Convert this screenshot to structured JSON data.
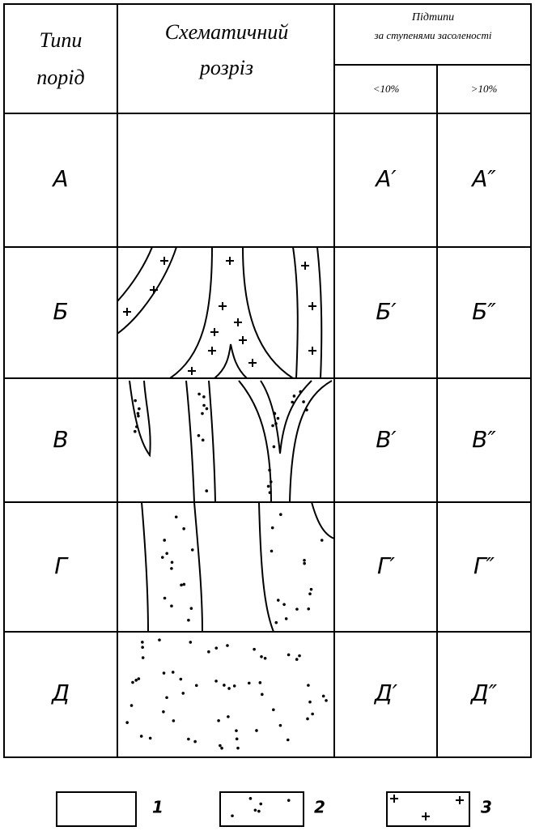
{
  "table": {
    "header": {
      "types": [
        "Типи",
        "порід"
      ],
      "section": [
        "Схематичний",
        "розріз"
      ],
      "subtypes": [
        "Підтипи",
        "за ступенями засоленості"
      ],
      "low": "<10%",
      "high": ">10%"
    },
    "rows": [
      [
        "А",
        "А′",
        "А″"
      ],
      [
        "Б",
        "Б′",
        "Б″"
      ],
      [
        "В",
        "В′",
        "В″"
      ],
      [
        "Г",
        "Г′",
        "Г″"
      ],
      [
        "Д",
        "Д′",
        "Д″"
      ]
    ]
  },
  "legend": [
    "1",
    "2",
    "3"
  ]
}
